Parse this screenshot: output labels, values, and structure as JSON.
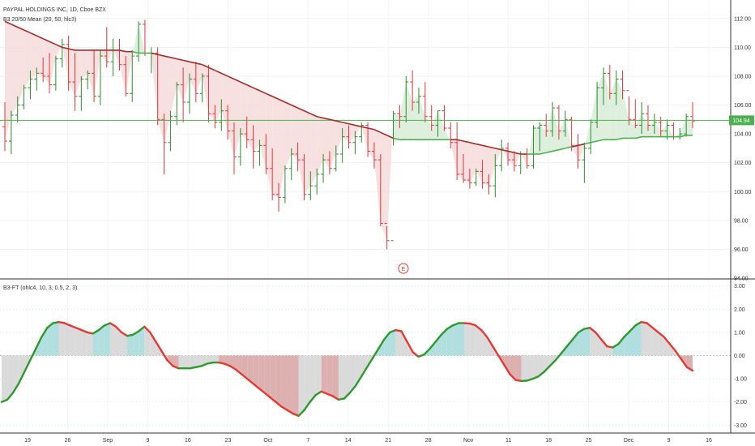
{
  "header": {
    "symbol_line": "PAYPAL HOLDINGS INC, 1D, Cboe BZX",
    "study_line": "B3 20/50 Mean (20, 50, hlc3)"
  },
  "lower_header": "B3-FT (ohlc4, 10, 3, 0.5, 2, 3)",
  "earnings_marker": "E",
  "price_label": "104.94",
  "colors": {
    "up_bar": "#2e8b2e",
    "down_bar": "#e8343a",
    "ma_fast": "#4caf50",
    "ma_slow": "#a52a2a",
    "fill_bull": "#d8ecd8",
    "fill_bear": "#f4dada",
    "price_line": "#4caf50",
    "ft_up": "#2e9a2e",
    "ft_down": "#e53935",
    "ft_fill_cyan": "#a8dcdc",
    "ft_fill_red": "#d9a7a7",
    "ft_fill_gray": "#d6d6d6"
  },
  "chart_data": [
    {
      "type": "ohlc",
      "title": "PAYPAL HOLDINGS INC, 1D, Cboe BZX",
      "ylim": [
        94.0,
        113.0
      ],
      "y_ticks": [
        "112.00",
        "110.00",
        "108.00",
        "106.00",
        "104.00",
        "102.00",
        "100.00",
        "98.00",
        "96.00",
        "94.00"
      ],
      "x_tick_labels": [
        "19",
        "26",
        "Sep",
        "9",
        "16",
        "23",
        "Oct",
        "7",
        "14",
        "21",
        "28",
        "Nov",
        "11",
        "18",
        "25",
        "Dec",
        "9",
        "16"
      ],
      "last_price": 104.94,
      "bars": [
        [
          104.5,
          106.2,
          102.8,
          103.5
        ],
        [
          103.5,
          105.6,
          102.6,
          105.3
        ],
        [
          105.3,
          106.6,
          104.8,
          106.0
        ],
        [
          106.0,
          107.4,
          105.7,
          107.2
        ],
        [
          107.2,
          108.4,
          106.4,
          107.8
        ],
        [
          107.8,
          108.6,
          107.0,
          108.2
        ],
        [
          108.2,
          109.3,
          107.6,
          108.0
        ],
        [
          108.0,
          109.6,
          106.8,
          107.4
        ],
        [
          107.4,
          109.4,
          107.0,
          109.2
        ],
        [
          109.2,
          110.6,
          108.6,
          110.2
        ],
        [
          110.2,
          110.8,
          107.0,
          107.6
        ],
        [
          107.6,
          109.6,
          105.6,
          106.6
        ],
        [
          106.6,
          108.0,
          105.6,
          107.8
        ],
        [
          107.8,
          108.4,
          107.1,
          108.2
        ],
        [
          108.2,
          109.8,
          106.2,
          106.6
        ],
        [
          106.6,
          109.8,
          106.0,
          109.4
        ],
        [
          109.4,
          111.4,
          108.6,
          109.0
        ],
        [
          109.0,
          110.6,
          108.0,
          109.8
        ],
        [
          109.8,
          110.6,
          108.4,
          108.8
        ],
        [
          108.8,
          109.4,
          106.6,
          106.8
        ],
        [
          106.8,
          109.8,
          106.2,
          109.4
        ],
        [
          109.4,
          111.8,
          109.0,
          111.6
        ],
        [
          111.6,
          111.9,
          109.4,
          109.6
        ],
        [
          109.6,
          110.0,
          108.2,
          109.6
        ],
        [
          109.6,
          110.0,
          104.6,
          105.0
        ],
        [
          105.0,
          105.4,
          101.2,
          103.4
        ],
        [
          103.4,
          105.6,
          102.8,
          105.2
        ],
        [
          105.2,
          107.6,
          104.6,
          107.4
        ],
        [
          107.4,
          108.6,
          104.8,
          106.2
        ],
        [
          106.2,
          108.2,
          105.4,
          107.8
        ],
        [
          107.8,
          109.0,
          106.2,
          106.8
        ],
        [
          106.8,
          108.2,
          106.2,
          108.0
        ],
        [
          108.0,
          108.8,
          104.8,
          105.4
        ],
        [
          105.4,
          106.0,
          104.4,
          104.8
        ],
        [
          104.8,
          106.4,
          104.2,
          105.6
        ],
        [
          105.6,
          106.0,
          103.6,
          104.2
        ],
        [
          104.2,
          104.8,
          101.2,
          102.4
        ],
        [
          102.4,
          104.4,
          101.8,
          104.0
        ],
        [
          104.0,
          105.2,
          103.0,
          103.6
        ],
        [
          103.6,
          104.6,
          101.6,
          102.8
        ],
        [
          102.8,
          103.6,
          101.8,
          103.2
        ],
        [
          103.2,
          104.0,
          101.2,
          101.6
        ],
        [
          101.6,
          103.0,
          99.4,
          99.8
        ],
        [
          99.8,
          100.6,
          98.6,
          99.6
        ],
        [
          99.6,
          101.8,
          99.2,
          101.6
        ],
        [
          101.6,
          103.0,
          100.8,
          102.6
        ],
        [
          102.6,
          103.4,
          101.4,
          102.2
        ],
        [
          102.2,
          102.6,
          99.4,
          99.8
        ],
        [
          99.8,
          101.4,
          99.4,
          100.4
        ],
        [
          100.4,
          101.6,
          99.8,
          101.2
        ],
        [
          101.2,
          102.6,
          100.6,
          102.2
        ],
        [
          102.2,
          102.8,
          101.2,
          101.6
        ],
        [
          101.6,
          103.2,
          101.4,
          102.6
        ],
        [
          102.6,
          104.4,
          102.0,
          103.8
        ],
        [
          103.8,
          104.6,
          103.0,
          103.4
        ],
        [
          103.4,
          104.2,
          102.6,
          103.8
        ],
        [
          103.8,
          104.8,
          103.4,
          104.6
        ],
        [
          104.6,
          104.8,
          102.4,
          102.8
        ],
        [
          102.8,
          103.4,
          101.6,
          102.2
        ],
        [
          102.2,
          102.6,
          97.6,
          97.8
        ],
        [
          97.8,
          97.6,
          96.0,
          96.6
        ],
        [
          96.6,
          105.6,
          103.2,
          105.4
        ],
        [
          105.4,
          106.0,
          104.4,
          105.2
        ],
        [
          105.2,
          108.0,
          104.8,
          107.6
        ],
        [
          107.6,
          108.4,
          105.6,
          106.2
        ],
        [
          106.2,
          107.2,
          105.4,
          106.6
        ],
        [
          106.6,
          107.6,
          104.8,
          105.2
        ],
        [
          105.2,
          106.0,
          104.2,
          104.6
        ],
        [
          104.6,
          105.6,
          103.8,
          105.6
        ],
        [
          105.6,
          106.0,
          104.2,
          104.4
        ],
        [
          104.4,
          104.8,
          103.0,
          103.4
        ],
        [
          103.4,
          104.8,
          100.8,
          101.2
        ],
        [
          101.2,
          102.6,
          100.6,
          100.8
        ],
        [
          100.8,
          101.6,
          100.2,
          100.6
        ],
        [
          100.6,
          101.6,
          100.4,
          101.4
        ],
        [
          101.4,
          102.2,
          100.2,
          100.6
        ],
        [
          100.6,
          101.2,
          99.8,
          100.4
        ],
        [
          100.4,
          102.6,
          99.6,
          101.8
        ],
        [
          101.8,
          103.6,
          101.4,
          103.0
        ],
        [
          103.0,
          103.4,
          101.8,
          102.2
        ],
        [
          102.2,
          102.8,
          101.4,
          101.8
        ],
        [
          101.8,
          102.8,
          101.2,
          102.6
        ],
        [
          102.6,
          103.0,
          101.6,
          101.8
        ],
        [
          101.8,
          104.6,
          101.6,
          104.4
        ],
        [
          104.4,
          104.8,
          102.8,
          104.6
        ],
        [
          104.6,
          105.4,
          103.8,
          104.2
        ],
        [
          104.2,
          106.2,
          103.8,
          105.8
        ],
        [
          105.8,
          106.0,
          103.6,
          104.2
        ],
        [
          104.2,
          105.6,
          103.8,
          105.0
        ],
        [
          105.0,
          105.2,
          102.8,
          103.2
        ],
        [
          103.2,
          104.0,
          101.6,
          102.2
        ],
        [
          102.2,
          103.4,
          100.6,
          103.0
        ],
        [
          103.0,
          105.0,
          102.6,
          104.8
        ],
        [
          104.8,
          107.6,
          104.4,
          107.2
        ],
        [
          107.2,
          108.6,
          106.0,
          108.2
        ],
        [
          108.2,
          108.8,
          106.4,
          106.8
        ],
        [
          106.8,
          108.4,
          106.0,
          107.8
        ],
        [
          107.8,
          108.4,
          106.4,
          107.0
        ],
        [
          107.0,
          106.6,
          104.6,
          105.0
        ],
        [
          105.0,
          106.4,
          104.4,
          104.6
        ],
        [
          104.6,
          106.2,
          104.0,
          105.4
        ],
        [
          105.4,
          106.0,
          104.2,
          104.6
        ],
        [
          104.6,
          105.4,
          104.0,
          104.8
        ],
        [
          104.8,
          105.2,
          103.8,
          104.2
        ],
        [
          104.2,
          105.0,
          103.6,
          104.6
        ],
        [
          104.6,
          104.8,
          103.6,
          103.8
        ],
        [
          103.8,
          104.4,
          103.6,
          104.0
        ],
        [
          104.0,
          105.4,
          103.8,
          105.2
        ],
        [
          105.2,
          106.2,
          104.4,
          104.9
        ]
      ],
      "series": [
        {
          "name": "20 Mean",
          "values": [
            112.6,
            112.2,
            111.8,
            111.4,
            111.0,
            110.6,
            110.3,
            110.1,
            110.0,
            109.9,
            109.8,
            109.7,
            109.6,
            109.5,
            109.5,
            109.5,
            109.5,
            109.6,
            109.7,
            109.7,
            109.8,
            109.8,
            109.8,
            109.8,
            109.7,
            109.6,
            109.5,
            109.4,
            109.3,
            109.2,
            109.1,
            109.0,
            108.8,
            108.6,
            108.4,
            108.2,
            108.0,
            107.8,
            107.6,
            107.4,
            107.2,
            107.0,
            106.8,
            106.6,
            106.4,
            106.2,
            106.0,
            105.8,
            105.6,
            105.4,
            105.3,
            105.2,
            105.1,
            105.0,
            104.9,
            104.8,
            104.6,
            104.4,
            104.2,
            104.0,
            103.8,
            103.2,
            103.2,
            103.3,
            103.4,
            103.5,
            103.6,
            103.7,
            103.8,
            103.8,
            103.8,
            103.8,
            103.8,
            103.8,
            103.8,
            103.8,
            103.8,
            103.7,
            103.6,
            103.5,
            103.5,
            103.4,
            103.3,
            103.3,
            103.3,
            103.3,
            103.3,
            103.4,
            103.5,
            103.5,
            103.4,
            103.3,
            103.3,
            103.4,
            103.5,
            103.6,
            103.7,
            103.8,
            103.9,
            104.0,
            104.1,
            104.2,
            104.2,
            104.2,
            104.3,
            104.3,
            104.4,
            104.4,
            104.5,
            104.6
          ]
        },
        {
          "name": "50 Mean",
          "values": [
            111.8,
            111.6,
            111.4,
            111.2,
            111.0,
            110.8,
            110.6,
            110.4,
            110.2,
            110.0,
            109.9,
            109.8,
            109.8,
            109.8,
            109.8,
            109.8,
            109.8,
            109.8,
            109.8,
            109.7,
            109.7,
            109.6,
            109.6,
            109.6,
            109.5,
            109.4,
            109.3,
            109.2,
            109.1,
            109.0,
            108.9,
            108.8,
            108.6,
            108.4,
            108.2,
            108.0,
            107.8,
            107.6,
            107.4,
            107.2,
            107.0,
            106.8,
            106.6,
            106.4,
            106.2,
            106.0,
            105.8,
            105.6,
            105.4,
            105.2,
            105.1,
            105.0,
            104.9,
            104.8,
            104.7,
            104.6,
            104.5,
            104.4,
            104.3,
            104.1,
            103.9,
            103.7,
            103.6,
            103.6,
            103.6,
            103.6,
            103.6,
            103.6,
            103.6,
            103.6,
            103.6,
            103.6,
            103.5,
            103.4,
            103.3,
            103.2,
            103.1,
            103.0,
            102.9,
            102.8,
            102.7,
            102.6,
            102.6,
            102.6,
            102.6,
            102.7,
            102.8,
            102.9,
            103.0,
            103.1,
            103.2,
            103.3,
            103.4,
            103.5,
            103.6,
            103.6,
            103.6,
            103.7,
            103.7,
            103.7,
            103.8,
            103.8,
            103.8,
            103.8,
            103.8,
            103.8,
            103.8,
            103.9,
            103.9,
            104.0
          ]
        }
      ]
    },
    {
      "type": "line",
      "title": "B3-FT (ohlc4, 10, 3, 0.5, 2, 3)",
      "ylim": [
        -3.2,
        3.2
      ],
      "y_ticks": [
        "3.00",
        "2.00",
        "1.00",
        "0.00",
        "-1.00",
        "-2.00",
        "-3.00"
      ],
      "series": [
        {
          "name": "FT",
          "values": [
            -2.0,
            -1.9,
            -1.6,
            -1.2,
            -0.7,
            -0.2,
            0.3,
            0.8,
            1.2,
            1.4,
            1.45,
            1.4,
            1.3,
            1.2,
            1.1,
            1.0,
            0.95,
            1.1,
            1.3,
            1.4,
            1.25,
            1.0,
            0.85,
            0.9,
            1.05,
            1.25,
            1.0,
            0.6,
            0.2,
            -0.2,
            -0.45,
            -0.55,
            -0.55,
            -0.55,
            -0.5,
            -0.45,
            -0.35,
            -0.3,
            -0.3,
            -0.35,
            -0.45,
            -0.6,
            -0.8,
            -1.0,
            -1.2,
            -1.4,
            -1.6,
            -1.8,
            -2.0,
            -2.2,
            -2.35,
            -2.5,
            -2.6,
            -2.35,
            -2.0,
            -1.7,
            -1.55,
            -1.65,
            -1.75,
            -1.9,
            -1.85,
            -1.6,
            -1.3,
            -0.9,
            -0.5,
            -0.1,
            0.3,
            0.7,
            1.0,
            1.1,
            1.05,
            0.6,
            0.15,
            -0.05,
            0.05,
            0.3,
            0.6,
            0.9,
            1.15,
            1.3,
            1.4,
            1.4,
            1.38,
            1.3,
            1.1,
            0.8,
            0.4,
            0.0,
            -0.4,
            -0.8,
            -1.05,
            -1.1,
            -1.08,
            -1.0,
            -0.9,
            -0.7,
            -0.45,
            -0.2,
            0.1,
            0.4,
            0.7,
            1.0,
            1.15,
            1.2,
            1.0,
            0.7,
            0.4,
            0.35,
            0.5,
            0.8,
            1.05,
            1.3,
            1.45,
            1.4,
            1.2,
            1.0,
            0.8,
            0.5,
            0.2,
            -0.15,
            -0.5,
            -0.65
          ]
        }
      ],
      "signal_line": 0.0
    }
  ]
}
